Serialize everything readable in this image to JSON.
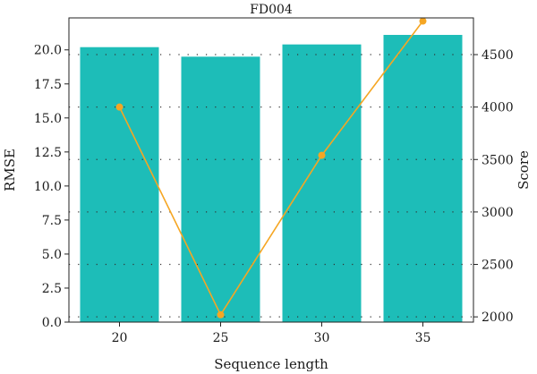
{
  "chart_data": {
    "type": "bar",
    "title": "FD004",
    "xlabel": "Sequence length",
    "ylabel": "RMSE",
    "ylabel_right": "Score",
    "categories": [
      "20",
      "25",
      "30",
      "35"
    ],
    "series": [
      {
        "type": "bar",
        "axis": "left",
        "color": "#1dbdb8",
        "values": [
          20.2,
          19.5,
          20.4,
          21.1
        ]
      },
      {
        "type": "line",
        "axis": "right",
        "color": "#f5a623",
        "values": [
          4000,
          2020,
          3540,
          4820
        ]
      }
    ],
    "ylim": [
      0,
      22.35
    ],
    "ylim_right": [
      1950,
      4850
    ],
    "yticks_left": [
      "0.0",
      "2.5",
      "5.0",
      "7.5",
      "10.0",
      "12.5",
      "15.0",
      "17.5",
      "20.0"
    ],
    "yticks_right": [
      "2000",
      "2500",
      "3000",
      "3500",
      "4000",
      "4500"
    ],
    "grid": "right-axis dotted horizontal",
    "legend": "none"
  }
}
